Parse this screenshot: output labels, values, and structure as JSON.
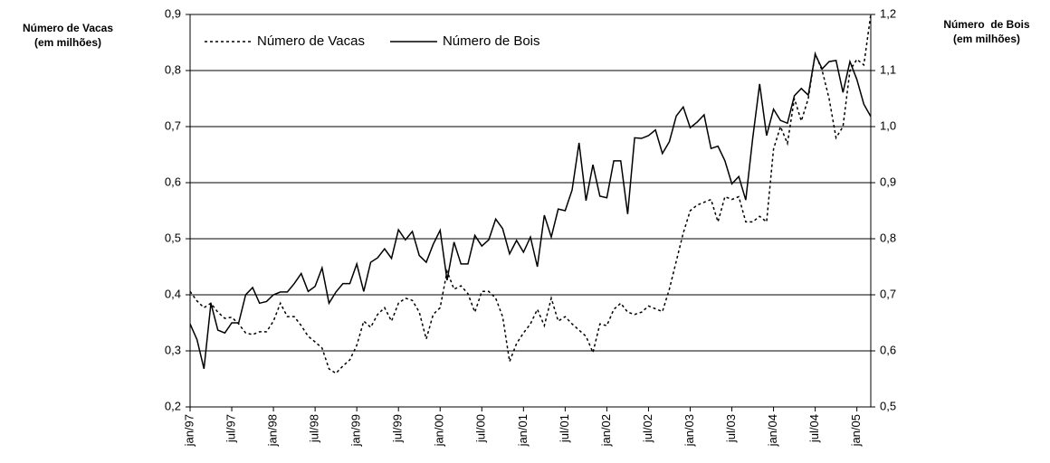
{
  "chart_data": {
    "type": "line",
    "y_label": [
      "Número de Vacas",
      "(em milhões)"
    ],
    "y2_label": [
      "Número  de Bois",
      "(em milhões)"
    ],
    "categories": [
      "jan/97",
      null,
      null,
      null,
      null,
      null,
      "jul/97",
      null,
      null,
      null,
      null,
      null,
      "jan/98",
      null,
      null,
      null,
      null,
      null,
      "jul/98",
      null,
      null,
      null,
      null,
      null,
      "jan/99",
      null,
      null,
      null,
      null,
      null,
      "jul/99",
      null,
      null,
      null,
      null,
      null,
      "jan/00",
      null,
      null,
      null,
      null,
      null,
      "jul/00",
      null,
      null,
      null,
      null,
      null,
      "jan/01",
      null,
      null,
      null,
      null,
      null,
      "jul/01",
      null,
      null,
      null,
      null,
      null,
      "jan/02",
      null,
      null,
      null,
      null,
      null,
      "jul/02",
      null,
      null,
      null,
      null,
      null,
      "jan/03",
      null,
      null,
      null,
      null,
      null,
      "jul/03",
      null,
      null,
      null,
      null,
      null,
      "jan/04",
      null,
      null,
      null,
      null,
      null,
      "jul/04",
      null,
      null,
      null,
      null,
      null,
      "jan/05",
      null,
      null
    ],
    "series": [
      {
        "name": "Número de Vacas",
        "color": "#000000",
        "line_style": "dotted",
        "axis": "y",
        "values": [
          0.406,
          0.389,
          0.377,
          0.385,
          0.369,
          0.358,
          0.36,
          0.348,
          0.332,
          0.329,
          0.334,
          0.334,
          0.353,
          0.385,
          0.361,
          0.361,
          0.345,
          0.326,
          0.316,
          0.305,
          0.268,
          0.26,
          0.273,
          0.284,
          0.31,
          0.353,
          0.342,
          0.365,
          0.377,
          0.353,
          0.385,
          0.394,
          0.39,
          0.369,
          0.321,
          0.365,
          0.377,
          0.442,
          0.41,
          0.416,
          0.402,
          0.369,
          0.406,
          0.406,
          0.394,
          0.361,
          0.281,
          0.313,
          0.332,
          0.348,
          0.374,
          0.345,
          0.394,
          0.353,
          0.361,
          0.348,
          0.337,
          0.326,
          0.297,
          0.348,
          0.345,
          0.374,
          0.385,
          0.369,
          0.365,
          0.369,
          0.38,
          0.375,
          0.37,
          0.41,
          0.46,
          0.51,
          0.55,
          0.56,
          0.565,
          0.57,
          0.53,
          0.575,
          0.57,
          0.575,
          0.53,
          0.53,
          0.54,
          0.53,
          0.66,
          0.7,
          0.67,
          0.75,
          0.71,
          0.75,
          0.83,
          0.8,
          0.75,
          0.68,
          0.7,
          0.8,
          0.82,
          0.81,
          0.9
        ]
      },
      {
        "name": "Número de Bois",
        "color": "#000000",
        "line_style": "solid",
        "axis": "y2",
        "values": [
          0.648,
          0.62,
          0.568,
          0.685,
          0.637,
          0.632,
          0.65,
          0.65,
          0.7,
          0.713,
          0.685,
          0.688,
          0.7,
          0.705,
          0.705,
          0.72,
          0.738,
          0.706,
          0.715,
          0.748,
          0.685,
          0.705,
          0.72,
          0.72,
          0.755,
          0.706,
          0.758,
          0.766,
          0.782,
          0.765,
          0.816,
          0.798,
          0.813,
          0.77,
          0.758,
          0.79,
          0.815,
          0.726,
          0.794,
          0.755,
          0.755,
          0.806,
          0.787,
          0.798,
          0.835,
          0.818,
          0.773,
          0.797,
          0.776,
          0.803,
          0.75,
          0.842,
          0.803,
          0.853,
          0.85,
          0.887,
          0.971,
          0.868,
          0.932,
          0.876,
          0.873,
          0.939,
          0.939,
          0.844,
          0.98,
          0.979,
          0.984,
          0.994,
          0.952,
          0.973,
          1.019,
          1.035,
          0.998,
          1.008,
          1.021,
          0.961,
          0.965,
          0.939,
          0.898,
          0.911,
          0.869,
          0.979,
          1.076,
          0.984,
          1.031,
          1.011,
          1.006,
          1.055,
          1.068,
          1.056,
          1.129,
          1.103,
          1.116,
          1.118,
          1.061,
          1.116,
          1.084,
          1.04,
          1.018
        ]
      }
    ],
    "ylim": [
      0.2,
      0.9
    ],
    "yticks": [
      {
        "value": 0.2,
        "label": "0,2"
      },
      {
        "value": 0.3,
        "label": "0,3"
      },
      {
        "value": 0.4,
        "label": "0,4"
      },
      {
        "value": 0.5,
        "label": "0,5"
      },
      {
        "value": 0.6,
        "label": "0,6"
      },
      {
        "value": 0.7,
        "label": "0,7"
      },
      {
        "value": 0.8,
        "label": "0,8"
      },
      {
        "value": 0.9,
        "label": "0,9"
      }
    ],
    "y2lim": [
      0.5,
      1.2
    ],
    "y2ticks": [
      {
        "value": 0.5,
        "label": "0,5"
      },
      {
        "value": 0.6,
        "label": "0,6"
      },
      {
        "value": 0.7,
        "label": "0,7"
      },
      {
        "value": 0.8,
        "label": "0,8"
      },
      {
        "value": 0.9,
        "label": "0,9"
      },
      {
        "value": 1.0,
        "label": "1,0"
      },
      {
        "value": 1.1,
        "label": "1,1"
      },
      {
        "value": 1.2,
        "label": "1,2"
      }
    ],
    "grid": true,
    "legend": "top-left"
  }
}
